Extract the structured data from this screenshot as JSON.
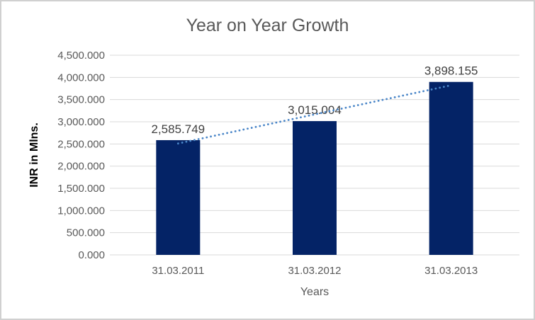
{
  "chart_data": {
    "type": "bar",
    "title": "Year on Year Growth",
    "xlabel": "Years",
    "ylabel": "INR in Mlns.",
    "categories": [
      "31.03.2011",
      "31.03.2012",
      "31.03.2013"
    ],
    "series": [
      {
        "name": "INR in Mlns.",
        "values": [
          2585.749,
          3015.004,
          3898.155
        ],
        "data_labels": [
          "2,585.749",
          "3,015.004",
          "3,898.155"
        ]
      }
    ],
    "trendline": {
      "type": "linear",
      "style": "dotted"
    },
    "ylim": [
      0,
      4500
    ],
    "y_tick_values": [
      0,
      500,
      1000,
      1500,
      2000,
      2500,
      3000,
      3500,
      4000,
      4500
    ],
    "y_tick_labels": [
      "0.000",
      "500.000",
      "1,000.000",
      "1,500.000",
      "2,000.000",
      "2,500.000",
      "3,000.000",
      "3,500.000",
      "4,000.000",
      "4,500.000"
    ],
    "grid": true,
    "legend": false,
    "colors": {
      "bar": "#042366",
      "trendline": "#4a86c8",
      "gridline": "#d9d9d9",
      "tick_text": "#595959",
      "title_text": "#595959",
      "data_label_text": "#404040",
      "y_axis_title_text": "#000000",
      "x_axis_title_text": "#595959",
      "border": "#d0d0d0",
      "background": "#ffffff"
    }
  }
}
